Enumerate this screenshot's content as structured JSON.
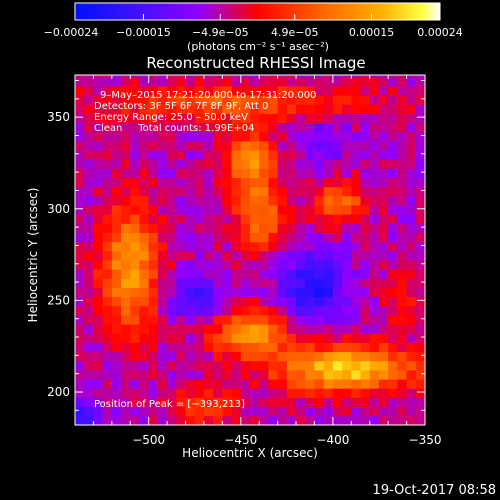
{
  "chart_data": {
    "type": "heatmap",
    "title": "Reconstructed RHESSI Image",
    "xlabel": "Heliocentric X (arcsec)",
    "ylabel": "Heliocentric Y (arcsec)",
    "xlim": [
      -540,
      -350
    ],
    "ylim": [
      182,
      373
    ],
    "x_ticks": [
      -500,
      -450,
      -400,
      -350
    ],
    "x_tick_labels": [
      "−500",
      "−450",
      "−400",
      "−350"
    ],
    "y_ticks": [
      200,
      250,
      300,
      350
    ],
    "y_tick_labels": [
      "200",
      "250",
      "300",
      "350"
    ],
    "colorbar": {
      "min": -0.00024,
      "max": 0.00024,
      "ticks": [
        -0.00024,
        -0.00015,
        -4.9e-05,
        4.9e-05,
        0.00015,
        0.00024
      ],
      "tick_labels": [
        "−0.00024",
        "−0.00015",
        "−4.9e−05",
        "4.9e−05",
        "0.00015",
        "0.00024"
      ],
      "units_label": "(photons cm⁻² s⁻¹ asec⁻²)",
      "colormap": [
        "#000000",
        "#2020ff",
        "#8000ff",
        "#ff0000",
        "#ff8000",
        "#ffff00",
        "#ffffff"
      ]
    },
    "annotations": [
      "9–May–2015 17:21:20.000 to 17:31:20.000",
      "Detectors: 3F 5F 6F 7F 8F 9F, Att 0",
      "Energy Range: 25.0 – 50.0 keV",
      "Clean     Total counts: 1.99E+04"
    ],
    "peak_label": "Position of Peak = [−393,213]",
    "peak_position": [
      -393,
      213
    ],
    "sources": [
      {
        "x": -510,
        "y": 268,
        "sx": 11,
        "sy": 24,
        "amp": 0.00019
      },
      {
        "x": -445,
        "y": 327,
        "sx": 9,
        "sy": 10,
        "amp": 0.00017
      },
      {
        "x": -440,
        "y": 297,
        "sx": 9,
        "sy": 14,
        "amp": 0.00016
      },
      {
        "x": -396,
        "y": 304,
        "sx": 10,
        "sy": 8,
        "amp": 0.00014
      },
      {
        "x": -393,
        "y": 213,
        "sx": 26,
        "sy": 9,
        "amp": 0.00024
      },
      {
        "x": -445,
        "y": 232,
        "sx": 14,
        "sy": 9,
        "amp": 0.00019
      },
      {
        "x": -455,
        "y": 358,
        "sx": 50,
        "sy": 7,
        "amp": 0.00012
      },
      {
        "x": -470,
        "y": 192,
        "sx": 14,
        "sy": 8,
        "amp": 8e-05
      },
      {
        "x": -362,
        "y": 250,
        "sx": 7,
        "sy": 10,
        "amp": 6e-05
      },
      {
        "x": -410,
        "y": 258,
        "sx": 12,
        "sy": 13,
        "amp": -0.00015
      },
      {
        "x": -475,
        "y": 252,
        "sx": 10,
        "sy": 9,
        "amp": -0.00011
      },
      {
        "x": -540,
        "y": 185,
        "sx": 10,
        "sy": 10,
        "amp": -0.00012
      },
      {
        "x": -405,
        "y": 337,
        "sx": 10,
        "sy": 10,
        "amp": -6e-05
      }
    ]
  },
  "footer": {
    "timestamp": "19-Oct-2017 08:58"
  }
}
